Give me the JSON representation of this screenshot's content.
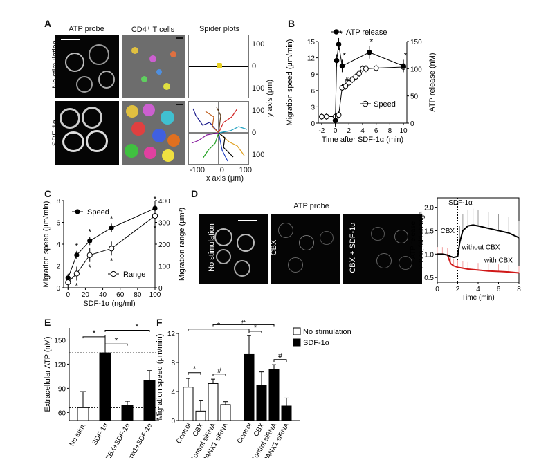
{
  "panels": {
    "A": {
      "label": "A",
      "headers": [
        "ATP probe",
        "CD4⁺ T cells",
        "Spider plots"
      ],
      "rows": [
        "No stimulation",
        "SDF-1α"
      ],
      "y_axis_label": "y axis (μm)",
      "x_axis_label": "x axis (μm)",
      "y_ticks_top": [
        "100",
        "0",
        "100"
      ],
      "y_ticks_bottom": [
        "100",
        "0",
        "100"
      ],
      "x_ticks": [
        "-100",
        "0",
        "100"
      ]
    },
    "B": {
      "label": "B",
      "legend_release": "ATP release",
      "legend_speed": "Speed",
      "ylabel_left": "Migration speed (μm/min)",
      "ylabel_right": "ATP release (nM)",
      "xlabel": "Time after SDF-1α (min)",
      "left_ticks": [
        "0",
        "3",
        "6",
        "9",
        "12",
        "15"
      ],
      "right_ticks": [
        "0",
        "50",
        "100",
        "150"
      ],
      "x_ticks": [
        "-2",
        "0",
        "2",
        "4",
        "6",
        "8",
        "10"
      ],
      "star": "*",
      "hash": "#"
    },
    "C": {
      "label": "C",
      "legend_speed": "Speed",
      "legend_range": "Range",
      "ylabel_left": "Migration speed (μm/min)",
      "ylabel_right": "Migration range (μm²)",
      "xlabel": "SDF-1α (ng/ml)",
      "left_ticks": [
        "0",
        "2",
        "4",
        "6",
        "8"
      ],
      "right_ticks": [
        "0",
        "100",
        "200",
        "300",
        "400"
      ],
      "x_ticks": [
        "0",
        "20",
        "40",
        "60",
        "80",
        "100"
      ],
      "star": "*"
    },
    "D": {
      "label": "D",
      "header": "ATP probe",
      "images": [
        "No stimulation",
        "CBX",
        "CBX + SDF-1α"
      ],
      "trace_title": "SDF-1α",
      "cbx_marker": "CBX",
      "ylabel": "ATP release\n2-2Zn, fold change",
      "ylabel_line1": "ATP release",
      "ylabel_line2": "2-2Zn, fold change",
      "xlabel": "Time (min)",
      "y_ticks": [
        "0.5",
        "1.0",
        "1.5",
        "2.0"
      ],
      "x_ticks": [
        "0",
        "2",
        "4",
        "6",
        "8"
      ],
      "without": "without CBX",
      "with": "with CBX"
    },
    "E": {
      "label": "E",
      "ylabel": "Extracellular ATP (nM)",
      "y_ticks": [
        "60",
        "90",
        "120",
        "150"
      ],
      "categories": [
        "No stim.",
        "SDF-1α",
        "CBX+SDF-1α",
        "¹⁰panx1+SDF-1α"
      ],
      "star": "*"
    },
    "F": {
      "label": "F",
      "ylabel": "Migration speed (μm/min)",
      "y_ticks": [
        "0",
        "4",
        "8",
        "12"
      ],
      "categories": [
        "Control",
        "CBX",
        "Control siRNA",
        "PANX1 siRNA",
        "Control",
        "CBX",
        "Control siRNA",
        "PANX1 siRNA"
      ],
      "legend_no": "No stimulation",
      "legend_sdf": "SDF-1α",
      "star": "*",
      "hash": "#"
    }
  },
  "chart_data": [
    {
      "panel": "B",
      "type": "line",
      "xlabel": "Time after SDF-1α (min)",
      "ylabel": "Migration speed (μm/min)",
      "xlim": [
        -2.5,
        10.5
      ],
      "ylim": [
        0,
        15
      ],
      "series": [
        {
          "name": "Speed",
          "axis": "left",
          "x": [
            -2,
            -1.3,
            0,
            0.5,
            1,
            1.5,
            2,
            2.5,
            3,
            3.5,
            4,
            4.5,
            6,
            10
          ],
          "y": [
            1.2,
            1.2,
            1.2,
            1.5,
            6.5,
            6.8,
            7.4,
            8.0,
            8.5,
            9.1,
            10.0,
            10.0,
            10.1,
            10.3
          ]
        },
        {
          "name": "ATP release",
          "axis": "right",
          "ylim": [
            0,
            150
          ],
          "x": [
            0,
            0.2,
            0.5,
            1,
            5,
            10
          ],
          "y": [
            5,
            115,
            145,
            105,
            130,
            105
          ]
        }
      ]
    },
    {
      "panel": "C",
      "type": "line",
      "xlabel": "SDF-1α (ng/ml)",
      "ylabel": "Migration speed (μm/min)",
      "xlim": [
        0,
        100
      ],
      "ylim": [
        0,
        8
      ],
      "series": [
        {
          "name": "Speed",
          "axis": "left",
          "x": [
            0,
            10,
            25,
            50,
            100
          ],
          "y": [
            0.9,
            3.0,
            4.3,
            5.5,
            7.3
          ]
        },
        {
          "name": "Range",
          "axis": "right",
          "ylim": [
            0,
            400
          ],
          "x": [
            0,
            10,
            25,
            50,
            100
          ],
          "y": [
            25,
            65,
            150,
            180,
            330
          ]
        }
      ]
    },
    {
      "panel": "D",
      "type": "line",
      "xlabel": "Time (min)",
      "ylabel": "ATP release 2-2Zn, fold change",
      "xlim": [
        0,
        8
      ],
      "ylim": [
        0.4,
        2.2
      ],
      "series": [
        {
          "name": "without CBX",
          "x": [
            0,
            0.5,
            1,
            1.3,
            1.6,
            2,
            2.2,
            2.5,
            3,
            3.5,
            4,
            5,
            6,
            7,
            8
          ],
          "y": [
            1.0,
            1.0,
            0.98,
            0.95,
            0.93,
            0.95,
            1.25,
            1.5,
            1.6,
            1.62,
            1.6,
            1.55,
            1.5,
            1.45,
            1.35
          ]
        },
        {
          "name": "with CBX",
          "x": [
            0,
            0.5,
            1,
            1.3,
            1.6,
            2,
            2.5,
            3,
            4,
            5,
            6,
            7,
            8
          ],
          "y": [
            1.0,
            1.0,
            0.98,
            0.8,
            0.75,
            0.72,
            0.7,
            0.68,
            0.66,
            0.64,
            0.63,
            0.62,
            0.6
          ]
        }
      ]
    },
    {
      "panel": "E",
      "type": "bar",
      "categories": [
        "No stim.",
        "SDF-1α",
        "CBX+SDF-1α",
        "¹⁰panx1+SDF-1α"
      ],
      "values": [
        66,
        134,
        69,
        100
      ],
      "errors": [
        20,
        22,
        5,
        12
      ],
      "ylabel": "Extracellular ATP (nM)",
      "ylim": [
        50,
        165
      ],
      "colors": [
        "#ffffff",
        "#000000",
        "#000000",
        "#000000"
      ]
    },
    {
      "panel": "F",
      "type": "bar",
      "categories": [
        "Control",
        "CBX",
        "Control siRNA",
        "PANX1 siRNA"
      ],
      "ylabel": "Migration speed (μm/min)",
      "ylim": [
        0,
        12
      ],
      "series": [
        {
          "name": "No stimulation",
          "values": [
            4.6,
            1.3,
            5.1,
            2.2
          ],
          "errors": [
            1.2,
            1.5,
            0.6,
            0.4
          ]
        },
        {
          "name": "SDF-1α",
          "values": [
            9.1,
            4.9,
            7.0,
            2.0
          ],
          "errors": [
            2.6,
            1.8,
            0.7,
            1.1
          ]
        }
      ]
    }
  ]
}
